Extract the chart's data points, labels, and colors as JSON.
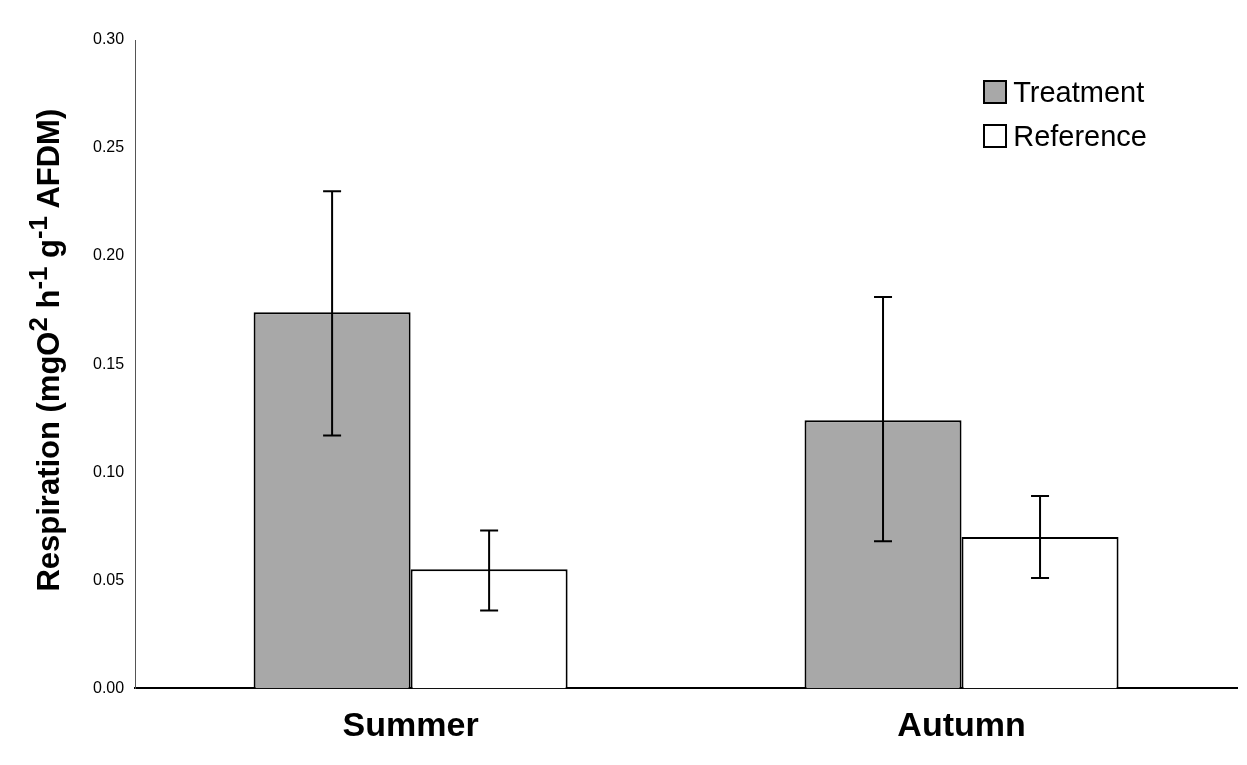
{
  "chart_data": {
    "type": "bar",
    "ylabel": "Respiration (mgO$^{2}$ h$^{-1}$ g$^{-1}$ AFDM)",
    "categories": [
      "Summer",
      "Autumn"
    ],
    "series": [
      {
        "name": "Treatment",
        "color": "#a8a8a8",
        "values": [
          0.174,
          0.124
        ],
        "errors": [
          [
            0.117,
            0.23
          ],
          [
            0.068,
            0.181
          ]
        ]
      },
      {
        "name": "Reference",
        "color": "#ffffff",
        "values": [
          0.055,
          0.07
        ],
        "errors": [
          [
            0.036,
            0.073
          ],
          [
            0.051,
            0.089
          ]
        ]
      }
    ],
    "ylim": [
      0,
      0.3
    ],
    "yticks": [
      {
        "value": 0,
        "label": "0.00"
      },
      {
        "value": 0.05,
        "label": "0.05"
      },
      {
        "value": 0.1,
        "label": "0.10"
      },
      {
        "value": 0.15,
        "label": "0.15"
      },
      {
        "value": 0.2,
        "label": "0.20"
      },
      {
        "value": 0.25,
        "label": "0.25"
      },
      {
        "value": 0.3,
        "label": "0.30"
      }
    ],
    "grid": false,
    "legend": "top right"
  }
}
